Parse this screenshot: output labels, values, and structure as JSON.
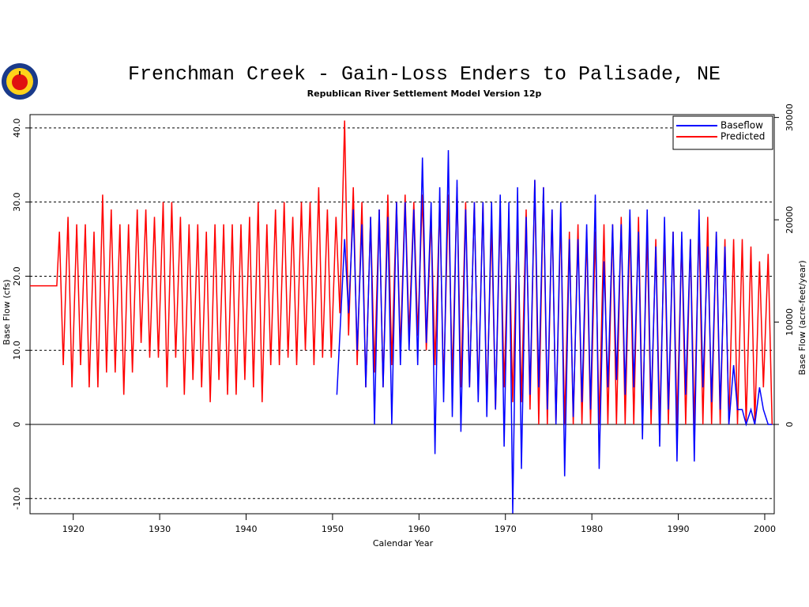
{
  "chart_data": {
    "type": "line",
    "title": "Frenchman Creek - Gain-Loss Enders to Palisade, NE",
    "subtitle": "Republican River Settlement Model Version 12p",
    "x_label": "Calendar Year",
    "y_label": "Base Flow (cfs)",
    "y2_label": "Base Flow (acre-feet/year)",
    "xlim": [
      1915,
      2001.1
    ],
    "xticks": [
      1920,
      1930,
      1940,
      1950,
      1960,
      1970,
      1980,
      1990,
      2000
    ],
    "ylim": [
      -12.05,
      41.8
    ],
    "yticks": [
      {
        "value": -10,
        "label": "-10.0"
      },
      0,
      {
        "value": 10,
        "label": "10.0"
      },
      {
        "value": 20,
        "label": "20.0"
      },
      {
        "value": 30,
        "label": "30.0"
      },
      {
        "value": 40,
        "label": "40.0"
      }
    ],
    "y2lim": [
      -8730,
      30280
    ],
    "y2ticks": [
      0,
      10000,
      20000,
      30000
    ],
    "grid": true,
    "legend": "upper right",
    "series": [
      {
        "name": "Baseflow",
        "color": "#0000ff",
        "x": [
          1950.5,
          1951.4,
          1951.85,
          1952.4,
          1952.85,
          1953.4,
          1953.85,
          1954.4,
          1954.85,
          1955.4,
          1955.85,
          1956.4,
          1956.85,
          1957.4,
          1957.85,
          1958.4,
          1958.85,
          1959.4,
          1959.85,
          1960.4,
          1960.85,
          1961.4,
          1961.85,
          1962.4,
          1962.85,
          1963.4,
          1963.85,
          1964.4,
          1964.85,
          1965.4,
          1965.85,
          1966.4,
          1966.85,
          1967.4,
          1967.85,
          1968.4,
          1968.85,
          1969.4,
          1969.85,
          1970.4,
          1970.85,
          1971.4,
          1971.85,
          1972.4,
          1972.85,
          1973.4,
          1973.85,
          1974.4,
          1974.85,
          1975.4,
          1975.85,
          1976.4,
          1976.85,
          1977.4,
          1977.85,
          1978.4,
          1978.85,
          1979.4,
          1979.85,
          1980.4,
          1980.85,
          1981.4,
          1981.85,
          1982.4,
          1982.85,
          1983.4,
          1983.85,
          1984.4,
          1984.85,
          1985.4,
          1985.85,
          1986.4,
          1986.85,
          1987.4,
          1987.85,
          1988.4,
          1988.85,
          1989.4,
          1989.85,
          1990.4,
          1990.85,
          1991.4,
          1991.85,
          1992.4,
          1992.85,
          1993.4,
          1993.85,
          1994.4,
          1994.85,
          1995.4,
          1995.85,
          1996.4,
          1996.85,
          1997.4,
          1997.85,
          1998.4,
          1998.85,
          1999.4,
          1999.85,
          2000.4,
          2000.85
        ],
        "values": [
          4,
          25,
          15,
          29,
          10,
          27,
          5,
          28,
          0,
          29,
          5,
          28,
          0,
          30,
          8,
          30,
          10,
          29,
          8,
          36,
          11,
          30,
          -4,
          32,
          3,
          37,
          1,
          33,
          -1,
          29,
          5,
          30,
          3,
          30,
          1,
          30,
          2,
          31,
          -3,
          30,
          -12,
          32,
          -6,
          28,
          4,
          33,
          5,
          32,
          2,
          29,
          0,
          30,
          -7,
          25,
          1,
          25,
          3,
          27,
          2,
          31,
          -6,
          22,
          5,
          27,
          6,
          27,
          4,
          29,
          5,
          26,
          -2,
          29,
          2,
          24,
          -3,
          28,
          2,
          26,
          -5,
          26,
          4,
          25,
          -5,
          29,
          5,
          24,
          3,
          26,
          2,
          24,
          0,
          8,
          2,
          2,
          0,
          2,
          0,
          5,
          2,
          0,
          0
        ]
      },
      {
        "name": "Predicted",
        "color": "#ff0000",
        "x": [
          1915,
          1918.1,
          1918.4,
          1918.85,
          1919.4,
          1919.85,
          1920.4,
          1920.85,
          1921.4,
          1921.85,
          1922.4,
          1922.85,
          1923.4,
          1923.85,
          1924.4,
          1924.85,
          1925.4,
          1925.85,
          1926.4,
          1926.85,
          1927.4,
          1927.85,
          1928.4,
          1928.85,
          1929.4,
          1929.85,
          1930.4,
          1930.85,
          1931.4,
          1931.85,
          1932.4,
          1932.85,
          1933.4,
          1933.85,
          1934.4,
          1934.85,
          1935.4,
          1935.85,
          1936.4,
          1936.85,
          1937.4,
          1937.85,
          1938.4,
          1938.85,
          1939.4,
          1939.85,
          1940.4,
          1940.85,
          1941.4,
          1941.85,
          1942.4,
          1942.85,
          1943.4,
          1943.85,
          1944.4,
          1944.85,
          1945.4,
          1945.85,
          1946.4,
          1946.85,
          1947.4,
          1947.85,
          1948.4,
          1948.85,
          1949.4,
          1949.85,
          1950.4,
          1950.85,
          1951.4,
          1951.85,
          1952.4,
          1952.85,
          1953.4,
          1953.85,
          1954.4,
          1954.85,
          1955.4,
          1955.85,
          1956.4,
          1956.85,
          1957.4,
          1957.85,
          1958.4,
          1958.85,
          1959.4,
          1959.85,
          1960.4,
          1960.85,
          1961.4,
          1961.85,
          1962.4,
          1962.85,
          1963.4,
          1963.85,
          1964.4,
          1964.85,
          1965.4,
          1965.85,
          1966.4,
          1966.85,
          1967.4,
          1967.85,
          1968.4,
          1968.85,
          1969.4,
          1969.85,
          1970.4,
          1970.85,
          1971.4,
          1971.85,
          1972.4,
          1972.85,
          1973.4,
          1973.85,
          1974.4,
          1974.85,
          1975.4,
          1975.85,
          1976.4,
          1976.85,
          1977.4,
          1977.85,
          1978.4,
          1978.85,
          1979.4,
          1979.85,
          1980.4,
          1980.85,
          1981.4,
          1981.85,
          1982.4,
          1982.85,
          1983.4,
          1983.85,
          1984.4,
          1984.85,
          1985.4,
          1985.85,
          1986.4,
          1986.85,
          1987.4,
          1987.85,
          1988.4,
          1988.85,
          1989.4,
          1989.85,
          1990.4,
          1990.85,
          1991.4,
          1991.85,
          1992.4,
          1992.85,
          1993.4,
          1993.85,
          1994.4,
          1994.85,
          1995.4,
          1995.85,
          1996.4,
          1996.85,
          1997.4,
          1997.85,
          1998.4,
          1998.85,
          1999.4,
          1999.85,
          2000.4,
          2000.85
        ],
        "values": [
          18.7,
          18.7,
          26,
          8,
          28,
          5,
          27,
          8,
          27,
          5,
          26,
          5,
          31,
          7,
          29,
          7,
          27,
          4,
          27,
          7,
          29,
          11,
          29,
          9,
          28,
          9,
          30,
          5,
          30,
          9,
          28,
          4,
          27,
          6,
          27,
          5,
          26,
          3,
          27,
          6,
          27,
          4,
          27,
          4,
          27,
          6,
          28,
          5,
          30,
          3,
          27,
          8,
          29,
          8,
          30,
          9,
          28,
          8,
          30,
          10,
          30,
          8,
          32,
          9,
          29,
          9,
          28,
          15,
          41,
          12,
          32,
          8,
          30,
          5,
          28,
          7,
          29,
          5,
          31,
          8,
          30,
          10,
          31,
          12,
          30,
          12,
          31,
          10,
          28,
          8,
          30,
          5,
          31,
          6,
          32,
          5,
          30,
          5,
          30,
          4,
          30,
          3,
          27,
          2,
          29,
          5,
          28,
          3,
          28,
          3,
          29,
          2,
          33,
          0,
          32,
          0,
          29,
          0,
          28,
          0,
          26,
          0,
          27,
          0,
          26,
          0,
          26,
          0,
          27,
          0,
          27,
          0,
          28,
          0,
          27,
          0,
          28,
          0,
          26,
          0,
          25,
          0,
          26,
          0,
          26,
          0,
          25,
          0,
          25,
          0,
          27,
          0,
          28,
          0,
          26,
          0,
          25,
          0,
          25,
          0,
          25,
          0,
          24,
          0,
          22,
          5,
          23,
          0
        ]
      }
    ]
  }
}
